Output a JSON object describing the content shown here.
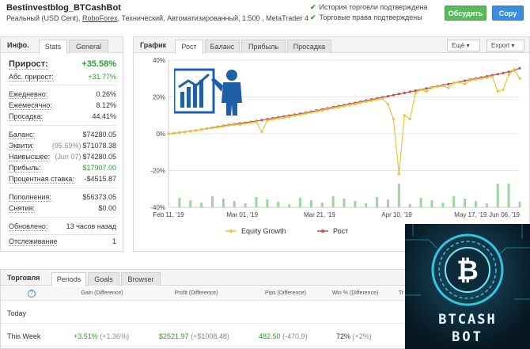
{
  "header": {
    "title": "Bestinvestblog_BTCashBot",
    "sub_pre": "Реальный (USD Cent), ",
    "broker": "RoboForex",
    "sub_post": ", Технический, Автоматизированный, 1:500 , MetaTrader 4",
    "check1": "История торговли подтверждена",
    "check2": "Торговые права подтверждены",
    "discuss_label": "Обсудить",
    "copy_label": "Copy",
    "accent_green": "#5cb85c",
    "accent_blue": "#3a8de0"
  },
  "left": {
    "tab_label": "Инфо.",
    "tab_stats": "Stats",
    "tab_general": "General",
    "growth_label": "Прирост:",
    "growth_value": "+35.58%",
    "abs_label": "Абс. прирост:",
    "abs_value": "+31.77%",
    "daily_label": "Ежедневно:",
    "daily_value": "0.26%",
    "monthly_label": "Ежемесячно:",
    "monthly_value": "8.12%",
    "drawdown_label": "Просадка:",
    "drawdown_value": "44.41%",
    "balance_label": "Баланс:",
    "balance_value": "$74280.05",
    "equity_label": "Эквити:",
    "equity_pre": "(95.69%)",
    "equity_value": "$71078.38",
    "highest_label": "Наивысшее:",
    "highest_pre": "(Jun 07)",
    "highest_value": "$74280.05",
    "profit_label": "Прибыль:",
    "profit_value": "$17907.00",
    "interest_label": "Процентная ставка:",
    "interest_value": "-$4515.87",
    "deposits_label": "Пополнения:",
    "deposits_value": "$56373.05",
    "withdrawals_label": "Снятия:",
    "withdrawals_value": "$0.00",
    "updated_label": "Обновлено:",
    "updated_value": "13 часов назад",
    "tracking_label": "Отслеживание",
    "tracking_value": "1"
  },
  "chartpanel": {
    "tab_label": "График",
    "tabs": [
      "Рост",
      "Баланс",
      "Прибыль",
      "Просадка"
    ],
    "more_label": "Ещё",
    "export_label": "Export",
    "legend_equity": "Equity Growth",
    "legend_growth": "Рост"
  },
  "chart_data": {
    "type": "line",
    "title": "",
    "xlabel": "",
    "ylabel": "",
    "ylim": [
      -40,
      40
    ],
    "yticks": [
      "40%",
      "20%",
      "0%",
      "-20%",
      "-40%"
    ],
    "x_tick_labels": [
      "Feb 11, '19",
      "Mar 01, '19",
      "Mar 21, '19",
      "Apr 10, '19",
      "May 17, '19",
      "Jun 06, '19"
    ],
    "colors": {
      "equity": "#e8c53a",
      "growth": "#c0504d",
      "bars": "#9fd49f"
    },
    "series": [
      {
        "name": "Рост",
        "values": [
          0,
          0.3,
          0.6,
          1.0,
          1.4,
          1.8,
          2.3,
          2.8,
          3.3,
          3.8,
          4.3,
          4.8,
          5.2,
          5.6,
          6.0,
          6.4,
          6.9,
          7.4,
          7.9,
          8.4,
          8.9,
          9.4,
          9.9,
          10.4,
          10.9,
          11.4,
          12.0,
          12.6,
          13.2,
          13.8,
          14.4,
          15.0,
          15.6,
          16.2,
          16.8,
          17.4,
          18.0,
          18.6,
          19.2,
          19.8,
          20.4,
          21.0,
          21.6,
          22.2,
          22.8,
          23.4,
          24.0,
          24.6,
          25.2,
          25.8,
          26.4,
          27.0,
          27.6,
          28.2,
          28.8,
          29.4,
          30.0,
          30.6,
          31.2,
          31.8,
          32.4,
          33.0,
          33.6,
          34.5,
          35.6
        ]
      },
      {
        "name": "Equity Growth",
        "values": [
          0,
          0.2,
          0.5,
          0.9,
          1.3,
          1.7,
          2.2,
          2.7,
          3.1,
          3.5,
          4.0,
          4.5,
          4.9,
          5.0,
          5.5,
          5.9,
          6.4,
          1.0,
          7.2,
          7.8,
          8.3,
          8.6,
          9.2,
          9.8,
          10.3,
          10.9,
          11.5,
          12.1,
          12.6,
          13.3,
          13.9,
          14.4,
          15.0,
          15.6,
          16.1,
          16.8,
          17.4,
          17.9,
          18.5,
          19.1,
          16.0,
          8.0,
          -22.0,
          10.0,
          8.0,
          22.0,
          24.0,
          23.0,
          25.0,
          25.5,
          26.0,
          25.0,
          27.5,
          28.0,
          27.0,
          29.0,
          29.5,
          30.0,
          30.5,
          31.0,
          23.0,
          24.0,
          32.0,
          35.0,
          30.0
        ]
      }
    ]
  },
  "trading": {
    "tab_label": "Торговля",
    "tabs": [
      "Periods",
      "Goals",
      "Browser"
    ],
    "columns": [
      "Gain (Difference)",
      "Profit (Difference)",
      "Pips (Difference)",
      "Win % (Difference)",
      "Tr"
    ],
    "rows": [
      {
        "period": "Today",
        "gain": "",
        "gain_diff": "",
        "profit": "",
        "profit_diff": "",
        "pips": "",
        "pips_diff": "",
        "win": "",
        "win_diff": ""
      },
      {
        "period": "This Week",
        "gain": "+3.51%",
        "gain_diff": "(+1.36%)",
        "profit": "$2521.97",
        "profit_diff": "(+$1008.48)",
        "pips": "482.50",
        "pips_diff": "(-470.9)",
        "win": "72%",
        "win_diff": "(+2%)"
      }
    ]
  },
  "promo": {
    "line1": "BTCASH",
    "line2": "BOT",
    "glyph": "₿"
  }
}
